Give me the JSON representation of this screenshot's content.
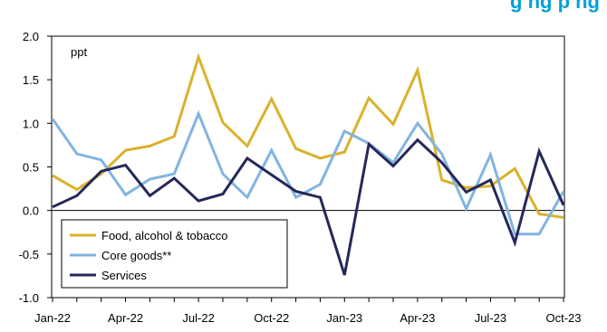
{
  "header": {
    "title_fragment": "g   ng p   ng"
  },
  "chart_data": {
    "type": "line",
    "unit_label": "ppt",
    "ylim": [
      -1.0,
      2.0
    ],
    "y_ticks": [
      "2.0",
      "1.5",
      "1.0",
      "0.5",
      "0.0",
      "-0.5",
      "-1.0"
    ],
    "y_tick_values": [
      2.0,
      1.5,
      1.0,
      0.5,
      0.0,
      -0.5,
      -1.0
    ],
    "x_tick_labels": [
      "Jan-22",
      "Apr-22",
      "Jul-22",
      "Oct-22",
      "Jan-23",
      "Apr-23",
      "Jul-23",
      "Oct-23"
    ],
    "x": [
      "Jan-22",
      "Feb-22",
      "Mar-22",
      "Apr-22",
      "May-22",
      "Jun-22",
      "Jul-22",
      "Aug-22",
      "Sep-22",
      "Oct-22",
      "Nov-22",
      "Dec-22",
      "Jan-23",
      "Feb-23",
      "Mar-23",
      "Apr-23",
      "May-23",
      "Jun-23",
      "Jul-23",
      "Aug-23",
      "Sep-23",
      "Oct-23"
    ],
    "grid": false,
    "legend_position": "bottom-left",
    "series": [
      {
        "name": "Food, alcohol & tobacco",
        "color": "#d9b22b",
        "values": [
          0.4,
          0.24,
          0.42,
          0.69,
          0.74,
          0.85,
          1.76,
          1.01,
          0.74,
          1.28,
          0.71,
          0.6,
          0.67,
          1.29,
          0.99,
          1.61,
          0.35,
          0.26,
          0.28,
          0.48,
          -0.04,
          -0.08
        ]
      },
      {
        "name": "Core goods**",
        "color": "#82b4e2",
        "values": [
          1.05,
          0.65,
          0.58,
          0.18,
          0.36,
          0.42,
          1.11,
          0.42,
          0.15,
          0.69,
          0.15,
          0.3,
          0.91,
          0.77,
          0.55,
          1.0,
          0.65,
          0.02,
          0.64,
          -0.27,
          -0.27,
          0.22
        ]
      },
      {
        "name": "Services",
        "color": "#25285a",
        "values": [
          0.04,
          0.17,
          0.45,
          0.52,
          0.17,
          0.37,
          0.11,
          0.19,
          0.6,
          0.41,
          0.22,
          0.15,
          -0.74,
          0.76,
          0.51,
          0.81,
          0.55,
          0.21,
          0.35,
          -0.37,
          0.68,
          0.06
        ]
      }
    ]
  }
}
